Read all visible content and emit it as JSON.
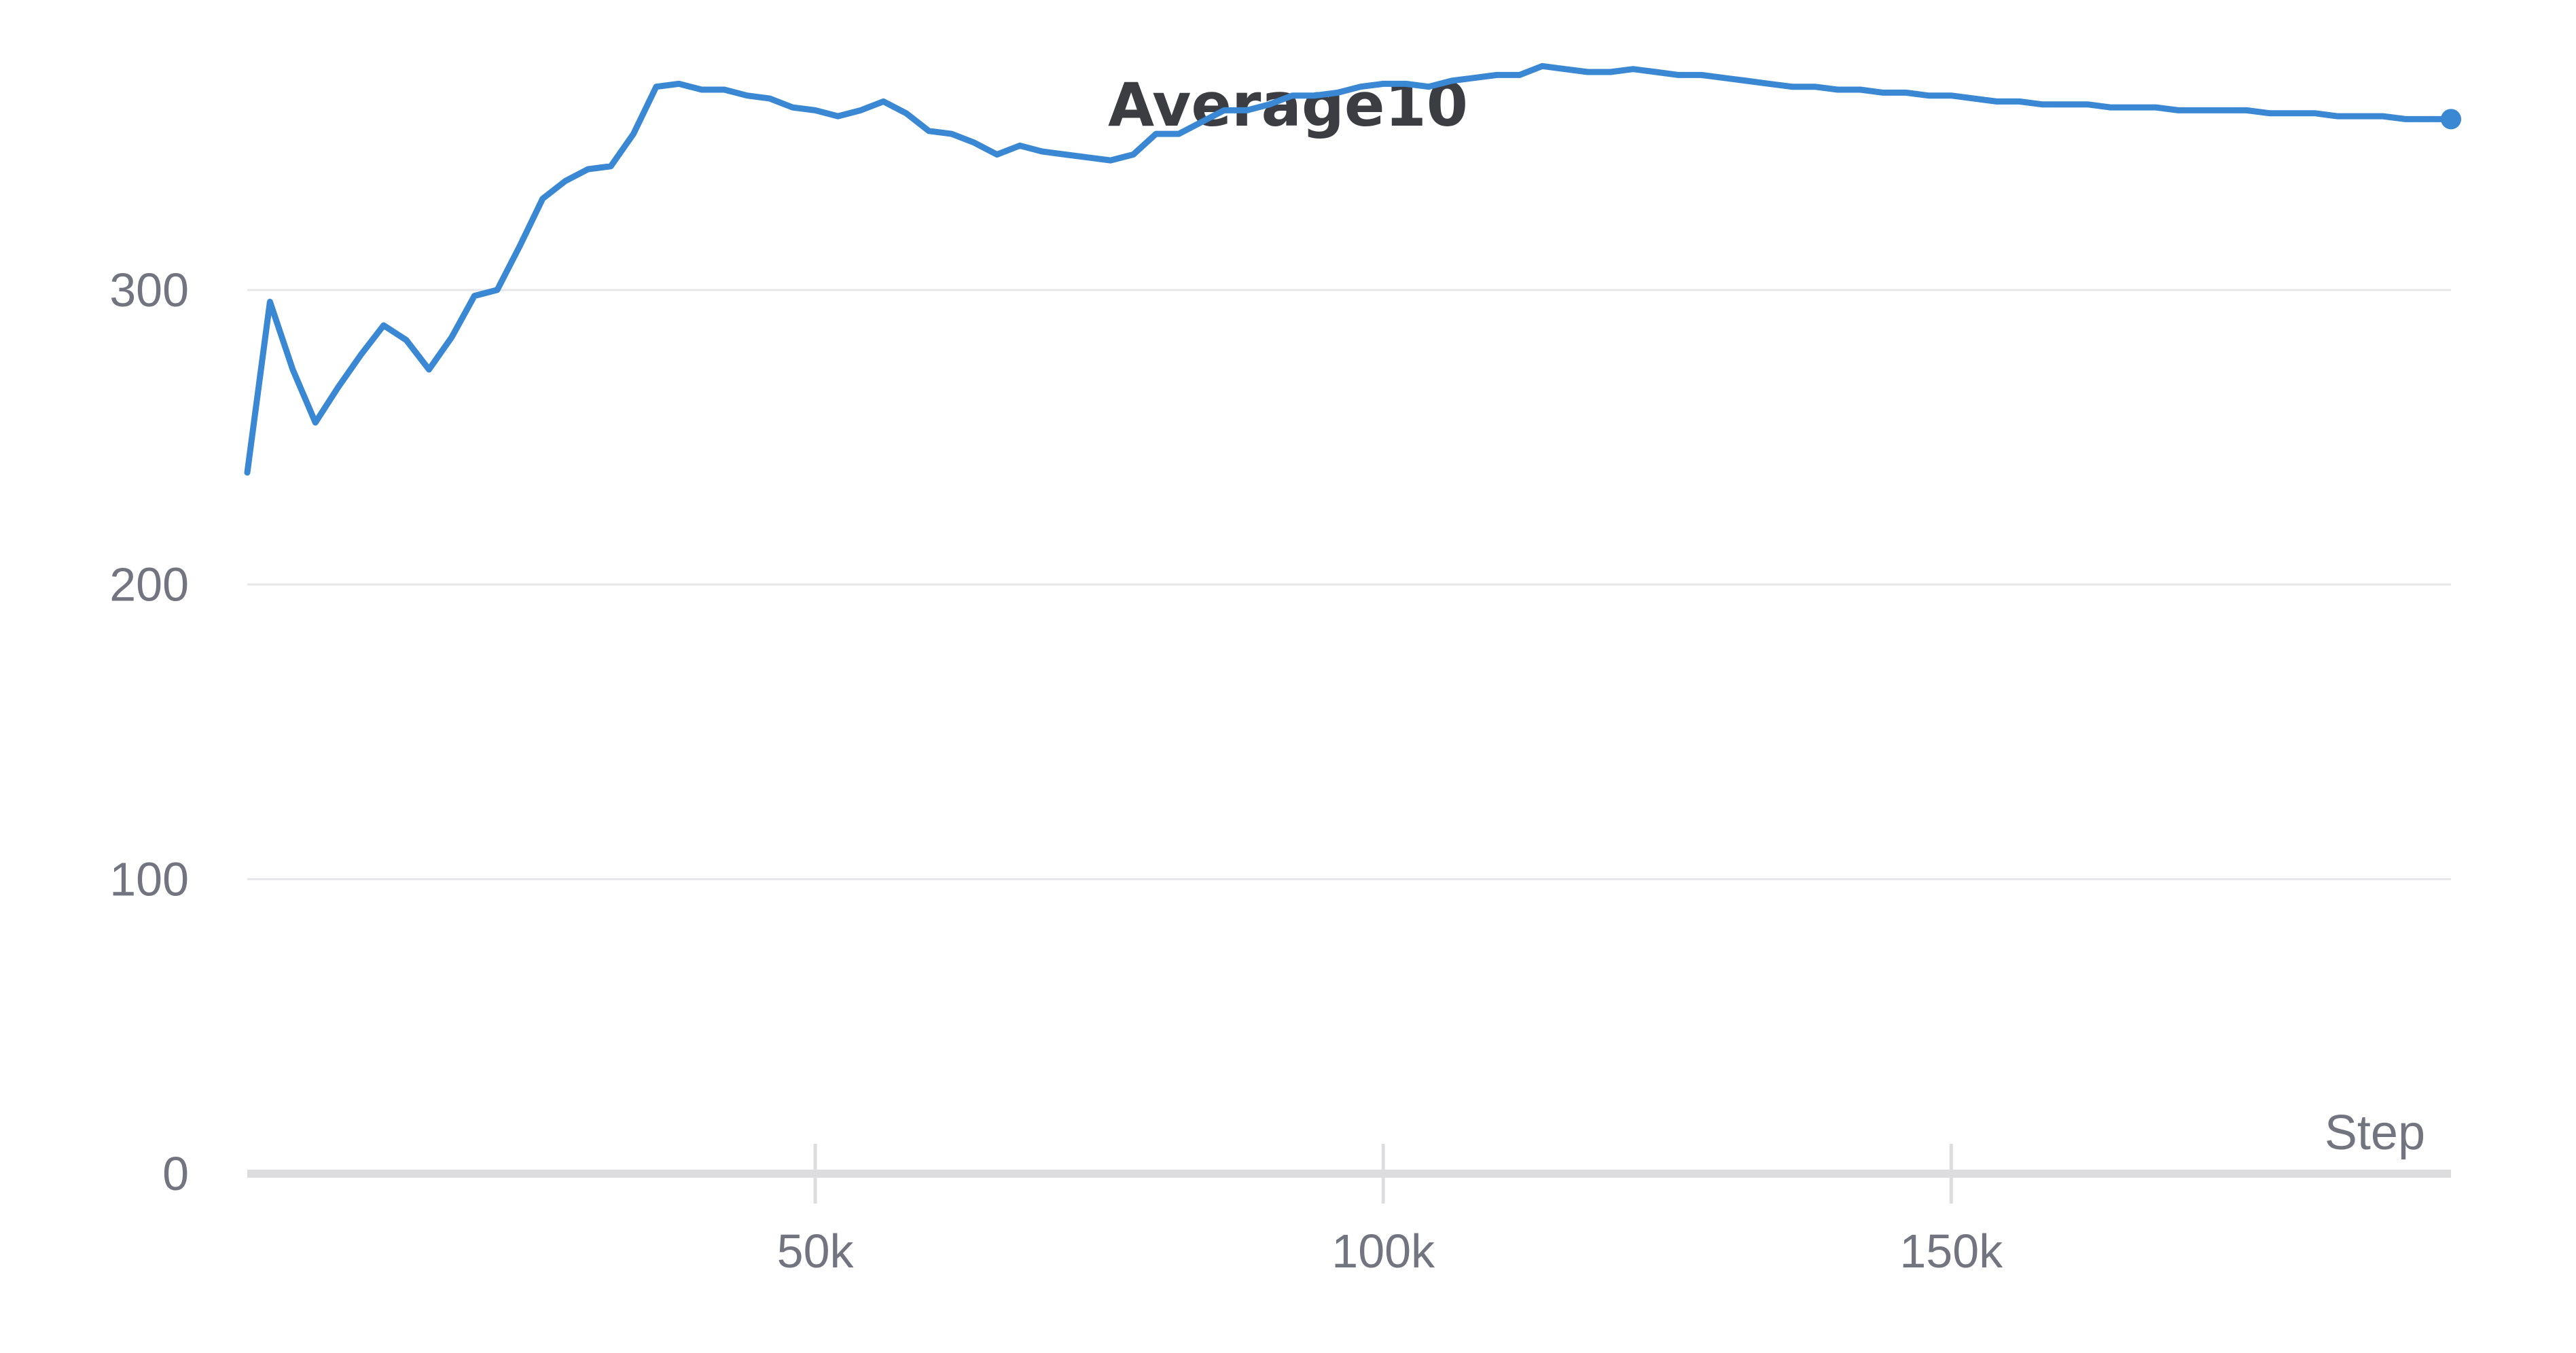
{
  "chart_data": {
    "type": "line",
    "title": "Average10",
    "xlabel": "Step",
    "ylabel": "",
    "xlim": [
      0,
      194000
    ],
    "ylim": [
      0,
      380
    ],
    "x_ticks": [
      50000,
      100000,
      150000
    ],
    "x_tick_labels": [
      "50k",
      "100k",
      "150k"
    ],
    "y_ticks": [
      0,
      100,
      200,
      300
    ],
    "y_tick_labels": [
      "0",
      "100",
      "200",
      "300"
    ],
    "grid": "horizontal",
    "legend": "none",
    "line_color": "#3a87d4",
    "series": [
      {
        "x": [
          0,
          2000,
          4000,
          6000,
          8000,
          10000,
          12000,
          14000,
          16000,
          18000,
          20000,
          22000,
          24000,
          26000,
          28000,
          30000,
          32000,
          34000,
          36000,
          38000,
          40000,
          42000,
          44000,
          46000,
          48000,
          50000,
          52000,
          54000,
          56000,
          58000,
          60000,
          62000,
          64000,
          66000,
          68000,
          70000,
          72000,
          74000,
          76000,
          78000,
          80000,
          82000,
          84000,
          86000,
          88000,
          90000,
          92000,
          94000,
          96000,
          98000,
          100000,
          102000,
          104000,
          106000,
          108000,
          110000,
          112000,
          114000,
          116000,
          118000,
          120000,
          122000,
          124000,
          126000,
          128000,
          130000,
          132000,
          134000,
          136000,
          138000,
          140000,
          142000,
          144000,
          146000,
          148000,
          150000,
          152000,
          154000,
          156000,
          158000,
          160000,
          162000,
          164000,
          166000,
          168000,
          170000,
          172000,
          174000,
          176000,
          178000,
          180000,
          182000,
          184000,
          186000,
          188000,
          190000,
          192000,
          194000
        ],
        "values": [
          238,
          296,
          273,
          255,
          267,
          278,
          288,
          283,
          273,
          284,
          298,
          300,
          315,
          331,
          337,
          341,
          342,
          353,
          369,
          370,
          368,
          368,
          366,
          365,
          362,
          361,
          359,
          361,
          364,
          360,
          354,
          353,
          350,
          346,
          349,
          347,
          346,
          345,
          344,
          346,
          353,
          353,
          357,
          361,
          361,
          363,
          366,
          366,
          367,
          369,
          370,
          370,
          369,
          371,
          372,
          373,
          373,
          376,
          375,
          374,
          374,
          375,
          374,
          373,
          373,
          372,
          371,
          370,
          369,
          369,
          368,
          368,
          367,
          367,
          366,
          366,
          365,
          364,
          364,
          363,
          363,
          363,
          362,
          362,
          362,
          361,
          361,
          361,
          361,
          360,
          360,
          360,
          359,
          359,
          359,
          358,
          358,
          358
        ]
      }
    ]
  }
}
